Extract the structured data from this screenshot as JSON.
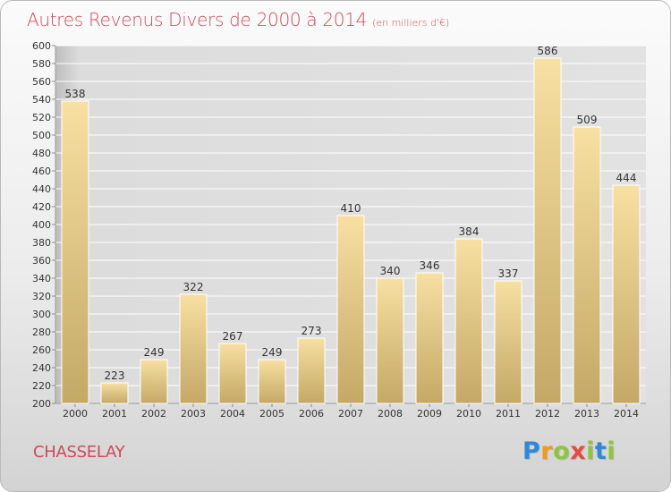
{
  "header": {
    "title": "Autres Revenus Divers de 2000 à 2014",
    "subtitle": "(en milliers d'€)"
  },
  "footer": {
    "commune": "CHASSELAY",
    "logo_letters": [
      "P",
      "r",
      "o",
      "x",
      "i",
      "t",
      "i"
    ]
  },
  "colors": {
    "title": "#cf4a57",
    "bar_top": "#f7e0a2",
    "bar_bottom": "#c4a866",
    "plot_bg": "#dddddd",
    "grid": "#ffffff"
  },
  "chart_data": {
    "type": "bar",
    "title": "Autres Revenus Divers de 2000 à 2014",
    "subtitle": "(en milliers d'€)",
    "xlabel": "",
    "ylabel": "",
    "categories": [
      "2000",
      "2001",
      "2002",
      "2003",
      "2004",
      "2005",
      "2006",
      "2007",
      "2008",
      "2009",
      "2010",
      "2011",
      "2012",
      "2013",
      "2014"
    ],
    "values": [
      538,
      223,
      249,
      322,
      267,
      249,
      273,
      410,
      340,
      346,
      384,
      337,
      586,
      509,
      444
    ],
    "ylim": [
      200,
      600
    ],
    "ytick_step": 20,
    "grid": true,
    "data_labels": true,
    "legend": "none"
  }
}
